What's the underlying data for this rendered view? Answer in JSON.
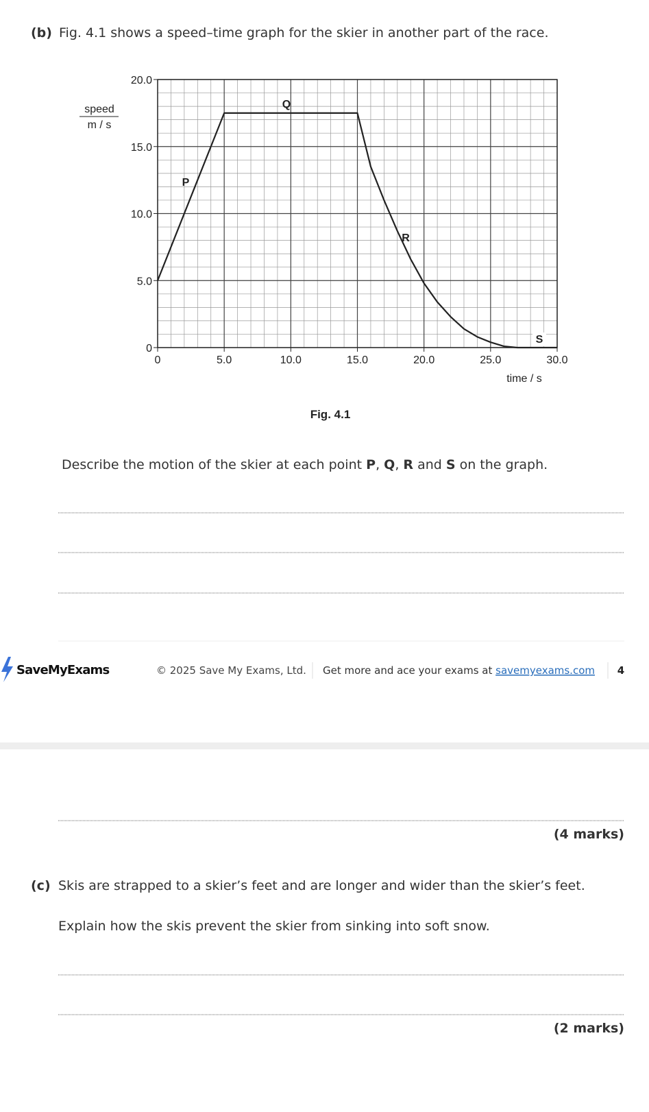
{
  "question_b": {
    "label": "(b)",
    "text": "Fig. 4.1 shows a speed–time graph for the skier in another part of the race.",
    "figure_caption": "Fig. 4.1",
    "prompt": [
      "Describe the motion of the skier at each point ",
      "P",
      ", ",
      "Q",
      ", ",
      "R",
      " and ",
      "S",
      " on the graph."
    ]
  },
  "chart_data": {
    "type": "line",
    "y_label_top": "speed",
    "y_label_bottom": "m / s",
    "x_label": "time / s",
    "x": [
      0,
      5,
      15,
      16,
      17,
      18,
      19,
      20,
      21,
      22,
      23,
      24,
      25,
      26,
      27,
      28,
      29,
      30
    ],
    "values": [
      5,
      17.5,
      17.5,
      13.5,
      11,
      8.7,
      6.6,
      4.8,
      3.4,
      2.3,
      1.4,
      0.8,
      0.4,
      0.1,
      0,
      0,
      0,
      0
    ],
    "color": "#222222",
    "xlim": [
      0,
      30
    ],
    "ylim": [
      0,
      20
    ],
    "xticks": [
      0,
      {
        "value": 5,
        "label": "5.0"
      },
      {
        "value": 10,
        "label": "10.0"
      },
      {
        "value": 15,
        "label": "15.0"
      },
      {
        "value": 20,
        "label": "20.0"
      },
      {
        "value": 25,
        "label": "25.0"
      },
      {
        "value": 30,
        "label": "30.0"
      }
    ],
    "yticks": [
      0,
      {
        "value": 5,
        "label": "5.0"
      },
      {
        "value": 10,
        "label": "10.0"
      },
      {
        "value": 15,
        "label": "15.0"
      },
      {
        "value": 20,
        "label": "20.0"
      }
    ],
    "grid": true,
    "annotations": [
      "P",
      "Q",
      "R",
      "S"
    ]
  },
  "footer": {
    "brand": "SaveMyExams",
    "copyright": "© 2025 Save My Exams, Ltd.",
    "promo": "Get more and ace your exams at ",
    "link": "savemyexams.com",
    "page": "4"
  },
  "part_b_marks": "(4 marks)",
  "question_c": {
    "label": "(c)",
    "text": "Skis are strapped to a skier’s feet and are longer and wider than the skier’s feet.",
    "prompt": "Explain how the skis prevent the skier from sinking into soft snow.",
    "marks": "(2 marks)"
  }
}
